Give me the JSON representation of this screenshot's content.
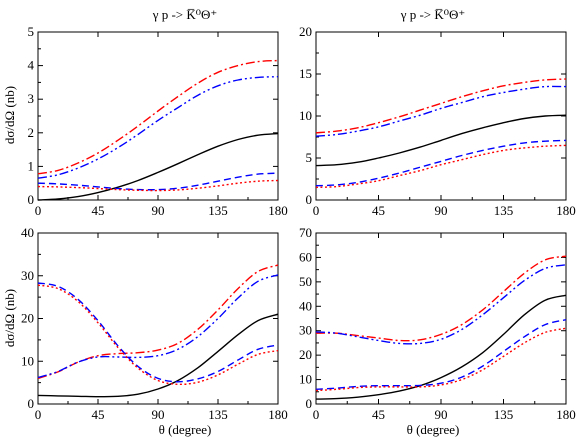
{
  "titles": {
    "left": "γ p -> K̅⁰Θ⁺",
    "right": "γ p -> K̅⁰Θ⁺"
  },
  "axis_labels": {
    "ylabel_top": "dσ/dΩ (nb)",
    "ylabel_bottom": "dσ/dΩ (nb)",
    "xlabel_left": "θ  (degree)",
    "xlabel_right": "θ  (degree)"
  },
  "styles": {
    "black": "#000000",
    "red": "#ff0000",
    "blue": "#0000ff"
  },
  "chart_data": [
    {
      "type": "line",
      "panel": "top-left",
      "x": [
        0,
        15,
        30,
        45,
        60,
        75,
        90,
        105,
        120,
        135,
        150,
        165,
        180
      ],
      "xlim": [
        0,
        180
      ],
      "ylim": [
        0,
        5
      ],
      "xticks": [
        0,
        45,
        90,
        135,
        180
      ],
      "yticks": [
        0,
        1,
        2,
        3,
        4,
        5
      ],
      "grid": false,
      "series": [
        {
          "style": "solid",
          "color": "black",
          "values": [
            0.0,
            0.03,
            0.1,
            0.22,
            0.38,
            0.58,
            0.82,
            1.08,
            1.35,
            1.6,
            1.8,
            1.93,
            1.98
          ]
        },
        {
          "style": "dashdot",
          "color": "red",
          "values": [
            0.78,
            0.88,
            1.1,
            1.4,
            1.78,
            2.2,
            2.65,
            3.08,
            3.48,
            3.8,
            4.0,
            4.12,
            4.15
          ]
        },
        {
          "style": "dashdotdot",
          "color": "blue",
          "values": [
            0.65,
            0.75,
            0.95,
            1.22,
            1.56,
            1.95,
            2.37,
            2.75,
            3.12,
            3.4,
            3.57,
            3.65,
            3.67
          ]
        },
        {
          "style": "dashed",
          "color": "blue",
          "values": [
            0.5,
            0.48,
            0.44,
            0.39,
            0.34,
            0.31,
            0.31,
            0.35,
            0.44,
            0.56,
            0.68,
            0.77,
            0.8
          ]
        },
        {
          "style": "dotted",
          "color": "red",
          "values": [
            0.4,
            0.39,
            0.37,
            0.34,
            0.31,
            0.29,
            0.28,
            0.3,
            0.35,
            0.42,
            0.5,
            0.56,
            0.58
          ]
        }
      ]
    },
    {
      "type": "line",
      "panel": "top-right",
      "x": [
        0,
        15,
        30,
        45,
        60,
        75,
        90,
        105,
        120,
        135,
        150,
        165,
        180
      ],
      "xlim": [
        0,
        180
      ],
      "ylim": [
        0,
        20
      ],
      "xticks": [
        0,
        45,
        90,
        135,
        180
      ],
      "yticks": [
        0,
        5,
        10,
        15,
        20
      ],
      "grid": false,
      "series": [
        {
          "style": "solid",
          "color": "black",
          "values": [
            4.1,
            4.2,
            4.5,
            5.0,
            5.6,
            6.3,
            7.1,
            7.9,
            8.6,
            9.2,
            9.7,
            10.0,
            10.1
          ]
        },
        {
          "style": "dashdot",
          "color": "red",
          "values": [
            8.0,
            8.2,
            8.6,
            9.2,
            9.9,
            10.7,
            11.5,
            12.3,
            13.0,
            13.6,
            14.0,
            14.3,
            14.4
          ]
        },
        {
          "style": "dashdotdot",
          "color": "blue",
          "values": [
            7.6,
            7.8,
            8.2,
            8.7,
            9.4,
            10.1,
            10.9,
            11.6,
            12.3,
            12.8,
            13.2,
            13.5,
            13.5
          ]
        },
        {
          "style": "dashed",
          "color": "blue",
          "values": [
            1.7,
            1.8,
            2.1,
            2.6,
            3.2,
            3.9,
            4.6,
            5.3,
            5.9,
            6.4,
            6.8,
            7.0,
            7.1
          ]
        },
        {
          "style": "dotted",
          "color": "red",
          "values": [
            1.5,
            1.6,
            1.9,
            2.3,
            2.9,
            3.5,
            4.2,
            4.8,
            5.4,
            5.9,
            6.2,
            6.4,
            6.5
          ]
        }
      ]
    },
    {
      "type": "line",
      "panel": "bottom-left",
      "x": [
        0,
        15,
        30,
        45,
        60,
        75,
        90,
        105,
        120,
        135,
        150,
        165,
        180
      ],
      "xlim": [
        0,
        180
      ],
      "ylim": [
        0,
        40
      ],
      "xticks": [
        0,
        45,
        90,
        135,
        180
      ],
      "yticks": [
        0,
        10,
        20,
        30,
        40
      ],
      "grid": false,
      "series": [
        {
          "style": "solid",
          "color": "black",
          "values": [
            2.0,
            1.9,
            1.8,
            1.7,
            1.8,
            2.3,
            3.5,
            5.5,
            8.5,
            12.3,
            16.2,
            19.5,
            21.0
          ]
        },
        {
          "style": "dashdot",
          "color": "red",
          "values": [
            6.0,
            7.5,
            9.8,
            11.3,
            11.8,
            12.0,
            12.6,
            14.2,
            17.5,
            22.0,
            27.0,
            31.0,
            32.5
          ]
        },
        {
          "style": "dashdotdot",
          "color": "blue",
          "values": [
            6.2,
            7.6,
            9.8,
            11.0,
            11.0,
            10.9,
            11.3,
            12.8,
            15.8,
            20.0,
            24.8,
            28.7,
            30.2
          ]
        },
        {
          "style": "dashed",
          "color": "blue",
          "values": [
            28.3,
            27.5,
            24.5,
            19.5,
            13.6,
            8.8,
            6.0,
            5.2,
            5.9,
            7.6,
            10.3,
            12.8,
            13.8
          ]
        },
        {
          "style": "dotted",
          "color": "red",
          "values": [
            27.8,
            27.0,
            24.0,
            19.0,
            13.2,
            8.4,
            5.5,
            4.6,
            5.1,
            6.8,
            9.3,
            11.6,
            12.5
          ]
        }
      ]
    },
    {
      "type": "line",
      "panel": "bottom-right",
      "x": [
        0,
        15,
        30,
        45,
        60,
        75,
        90,
        105,
        120,
        135,
        150,
        165,
        180
      ],
      "xlim": [
        0,
        180
      ],
      "ylim": [
        0,
        70
      ],
      "xticks": [
        0,
        45,
        90,
        135,
        180
      ],
      "yticks": [
        0,
        10,
        20,
        30,
        40,
        50,
        60,
        70
      ],
      "grid": false,
      "series": [
        {
          "style": "solid",
          "color": "black",
          "values": [
            2.0,
            2.2,
            2.8,
            3.8,
            5.3,
            7.5,
            10.8,
            15.2,
            21.0,
            28.5,
            36.5,
            42.5,
            44.5
          ]
        },
        {
          "style": "dashdot",
          "color": "red",
          "values": [
            29.0,
            29.0,
            28.0,
            27.0,
            26.0,
            26.3,
            28.5,
            32.5,
            38.5,
            46.0,
            53.5,
            59.0,
            60.5
          ]
        },
        {
          "style": "dashdotdot",
          "color": "blue",
          "values": [
            29.5,
            29.0,
            27.5,
            26.0,
            24.8,
            24.8,
            26.5,
            30.5,
            36.5,
            43.5,
            50.5,
            55.5,
            57.0
          ]
        },
        {
          "style": "dashed",
          "color": "blue",
          "values": [
            6.0,
            6.5,
            7.2,
            7.5,
            7.5,
            7.6,
            8.5,
            11.0,
            15.5,
            21.5,
            27.5,
            32.5,
            34.5
          ]
        },
        {
          "style": "dotted",
          "color": "red",
          "values": [
            5.5,
            6.0,
            6.7,
            7.0,
            7.0,
            7.0,
            7.8,
            10.0,
            14.0,
            19.5,
            25.0,
            29.3,
            31.0
          ]
        }
      ]
    }
  ]
}
